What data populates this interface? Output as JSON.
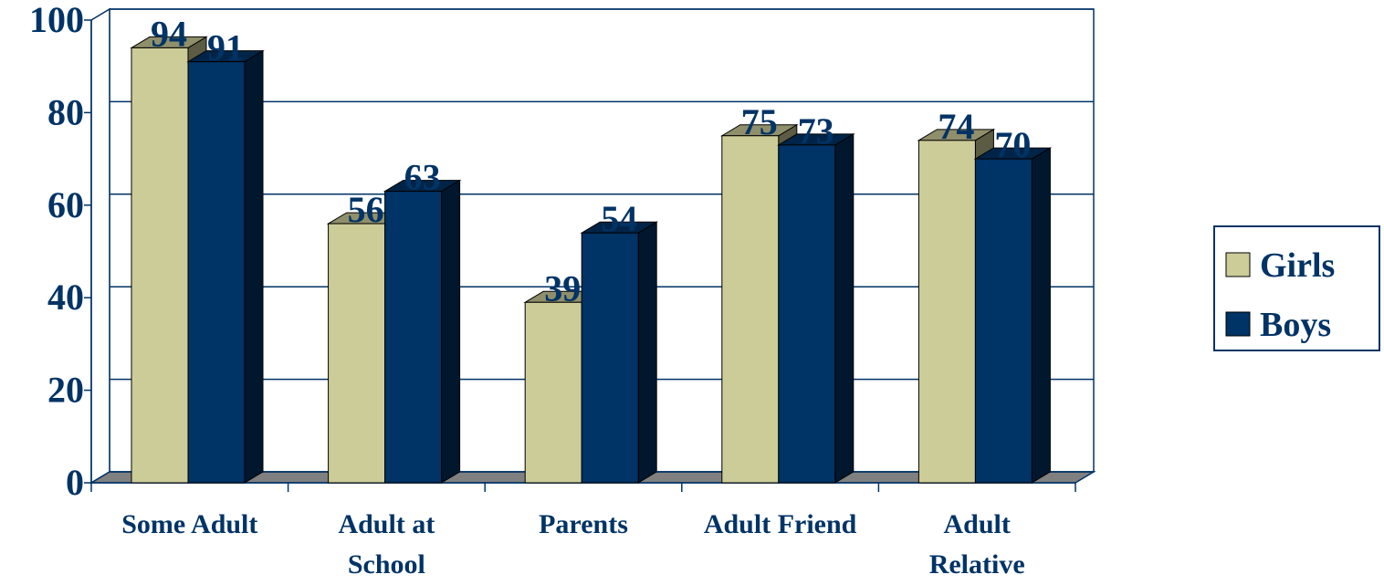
{
  "chart_data": {
    "type": "bar3d",
    "categories": [
      "Some Adult",
      "Adult at\nSchool",
      "Parents",
      "Adult Friend",
      "Adult\nRelative"
    ],
    "series": [
      {
        "name": "Girls",
        "color": "#cccc99",
        "values": [
          94,
          56,
          39,
          75,
          74
        ]
      },
      {
        "name": "Boys",
        "color": "#003366",
        "values": [
          91,
          63,
          54,
          73,
          70
        ]
      }
    ],
    "ylim": [
      0,
      100
    ],
    "yticks": [
      0,
      20,
      40,
      60,
      80,
      100
    ],
    "grid": true,
    "legend": "right"
  }
}
